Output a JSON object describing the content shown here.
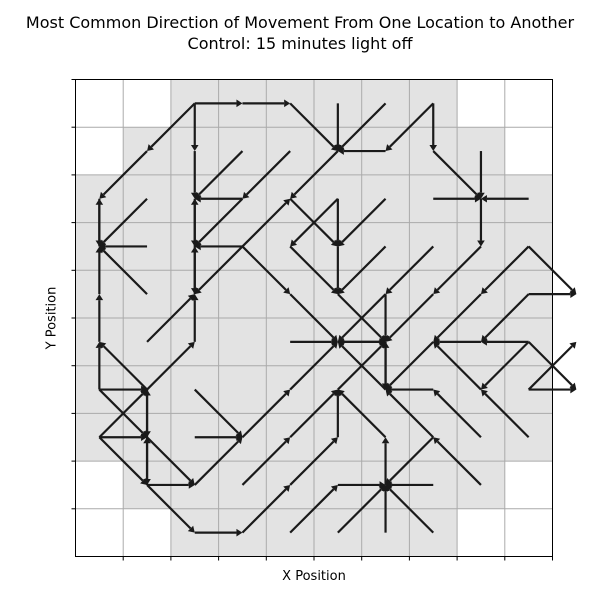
{
  "chart_data": {
    "type": "quiver",
    "title": "Most Common Direction of Movement From One Location to Another",
    "subtitle": "Control: 15 minutes light off",
    "xlabel": "X Position",
    "ylabel": "Y Position",
    "grid_cols": 10,
    "grid_rows": 10,
    "colors": {
      "visited": "#e3e3e3",
      "grid": "#aaaaaa",
      "arrow": "#1a1a1a",
      "axis": "#000000"
    },
    "visited_cells": [
      [
        2,
        0
      ],
      [
        3,
        0
      ],
      [
        4,
        0
      ],
      [
        5,
        0
      ],
      [
        6,
        0
      ],
      [
        7,
        0
      ],
      [
        1,
        1
      ],
      [
        2,
        1
      ],
      [
        3,
        1
      ],
      [
        4,
        1
      ],
      [
        5,
        1
      ],
      [
        6,
        1
      ],
      [
        7,
        1
      ],
      [
        8,
        1
      ],
      [
        0,
        2
      ],
      [
        1,
        2
      ],
      [
        2,
        2
      ],
      [
        3,
        2
      ],
      [
        4,
        2
      ],
      [
        5,
        2
      ],
      [
        6,
        2
      ],
      [
        7,
        2
      ],
      [
        8,
        2
      ],
      [
        9,
        2
      ],
      [
        0,
        3
      ],
      [
        1,
        3
      ],
      [
        2,
        3
      ],
      [
        3,
        3
      ],
      [
        4,
        3
      ],
      [
        5,
        3
      ],
      [
        6,
        3
      ],
      [
        7,
        3
      ],
      [
        8,
        3
      ],
      [
        9,
        3
      ],
      [
        0,
        4
      ],
      [
        1,
        4
      ],
      [
        2,
        4
      ],
      [
        3,
        4
      ],
      [
        4,
        4
      ],
      [
        5,
        4
      ],
      [
        6,
        4
      ],
      [
        7,
        4
      ],
      [
        8,
        4
      ],
      [
        9,
        4
      ],
      [
        0,
        5
      ],
      [
        1,
        5
      ],
      [
        2,
        5
      ],
      [
        3,
        5
      ],
      [
        4,
        5
      ],
      [
        5,
        5
      ],
      [
        6,
        5
      ],
      [
        7,
        5
      ],
      [
        8,
        5
      ],
      [
        9,
        5
      ],
      [
        0,
        6
      ],
      [
        1,
        6
      ],
      [
        2,
        6
      ],
      [
        3,
        6
      ],
      [
        4,
        6
      ],
      [
        5,
        6
      ],
      [
        6,
        6
      ],
      [
        7,
        6
      ],
      [
        8,
        6
      ],
      [
        9,
        6
      ],
      [
        0,
        7
      ],
      [
        1,
        7
      ],
      [
        2,
        7
      ],
      [
        3,
        7
      ],
      [
        4,
        7
      ],
      [
        5,
        7
      ],
      [
        6,
        7
      ],
      [
        7,
        7
      ],
      [
        8,
        7
      ],
      [
        9,
        7
      ],
      [
        1,
        8
      ],
      [
        2,
        8
      ],
      [
        3,
        8
      ],
      [
        4,
        8
      ],
      [
        5,
        8
      ],
      [
        6,
        8
      ],
      [
        7,
        8
      ],
      [
        8,
        8
      ],
      [
        2,
        9
      ],
      [
        3,
        9
      ],
      [
        4,
        9
      ],
      [
        5,
        9
      ],
      [
        6,
        9
      ],
      [
        7,
        9
      ]
    ],
    "moves": [
      {
        "from": [
          2,
          0
        ],
        "dir": "SW"
      },
      {
        "from": [
          2,
          0
        ],
        "dir": "S"
      },
      {
        "from": [
          2,
          0
        ],
        "dir": "E"
      },
      {
        "from": [
          3,
          0
        ],
        "dir": "E"
      },
      {
        "from": [
          4,
          0
        ],
        "dir": "SE"
      },
      {
        "from": [
          5,
          0
        ],
        "dir": "S"
      },
      {
        "from": [
          6,
          0
        ],
        "dir": "SW"
      },
      {
        "from": [
          7,
          0
        ],
        "dir": "SW"
      },
      {
        "from": [
          7,
          0
        ],
        "dir": "S"
      },
      {
        "from": [
          1,
          1
        ],
        "dir": "SW"
      },
      {
        "from": [
          2,
          1
        ],
        "dir": "S"
      },
      {
        "from": [
          3,
          1
        ],
        "dir": "SW"
      },
      {
        "from": [
          4,
          1
        ],
        "dir": "SW"
      },
      {
        "from": [
          5,
          1
        ],
        "dir": "SW"
      },
      {
        "from": [
          6,
          1
        ],
        "dir": "W"
      },
      {
        "from": [
          7,
          1
        ],
        "dir": "SE"
      },
      {
        "from": [
          8,
          1
        ],
        "dir": "S"
      },
      {
        "from": [
          0,
          2
        ],
        "dir": "S"
      },
      {
        "from": [
          1,
          2
        ],
        "dir": "SW"
      },
      {
        "from": [
          2,
          2
        ],
        "dir": "S"
      },
      {
        "from": [
          3,
          2
        ],
        "dir": "W"
      },
      {
        "from": [
          3,
          2
        ],
        "dir": "SW"
      },
      {
        "from": [
          4,
          2
        ],
        "dir": "SE"
      },
      {
        "from": [
          5,
          2
        ],
        "dir": "S"
      },
      {
        "from": [
          5,
          2
        ],
        "dir": "SW"
      },
      {
        "from": [
          6,
          2
        ],
        "dir": "SW"
      },
      {
        "from": [
          7,
          2
        ],
        "dir": "E"
      },
      {
        "from": [
          8,
          2
        ],
        "dir": "S"
      },
      {
        "from": [
          9,
          2
        ],
        "dir": "W"
      },
      {
        "from": [
          0,
          3
        ],
        "dir": "N"
      },
      {
        "from": [
          1,
          3
        ],
        "dir": "W"
      },
      {
        "from": [
          2,
          3
        ],
        "dir": "N"
      },
      {
        "from": [
          2,
          3
        ],
        "dir": "S"
      },
      {
        "from": [
          3,
          3
        ],
        "dir": "W"
      },
      {
        "from": [
          3,
          3
        ],
        "dir": "SE"
      },
      {
        "from": [
          3,
          3
        ],
        "dir": "SW"
      },
      {
        "from": [
          3,
          3
        ],
        "dir": "NE"
      },
      {
        "from": [
          4,
          3
        ],
        "dir": "SE"
      },
      {
        "from": [
          5,
          3
        ],
        "dir": "S"
      },
      {
        "from": [
          6,
          3
        ],
        "dir": "SW"
      },
      {
        "from": [
          7,
          3
        ],
        "dir": "SW"
      },
      {
        "from": [
          8,
          3
        ],
        "dir": "SW"
      },
      {
        "from": [
          9,
          3
        ],
        "dir": "SE"
      },
      {
        "from": [
          9,
          3
        ],
        "dir": "SW"
      },
      {
        "from": [
          0,
          4
        ],
        "dir": "N"
      },
      {
        "from": [
          1,
          4
        ],
        "dir": "NW"
      },
      {
        "from": [
          2,
          4
        ],
        "dir": "N"
      },
      {
        "from": [
          4,
          4
        ],
        "dir": "SE"
      },
      {
        "from": [
          5,
          4
        ],
        "dir": "SE"
      },
      {
        "from": [
          6,
          4
        ],
        "dir": "S"
      },
      {
        "from": [
          6,
          4
        ],
        "dir": "SW"
      },
      {
        "from": [
          7,
          4
        ],
        "dir": "SW"
      },
      {
        "from": [
          8,
          4
        ],
        "dir": "SW"
      },
      {
        "from": [
          9,
          4
        ],
        "dir": "E"
      },
      {
        "from": [
          9,
          4
        ],
        "dir": "SW"
      },
      {
        "from": [
          0,
          5
        ],
        "dir": "N"
      },
      {
        "from": [
          1,
          5
        ],
        "dir": "NE"
      },
      {
        "from": [
          2,
          5
        ],
        "dir": "N"
      },
      {
        "from": [
          4,
          5
        ],
        "dir": "E"
      },
      {
        "from": [
          5,
          5
        ],
        "dir": "E"
      },
      {
        "from": [
          6,
          5
        ],
        "dir": "W"
      },
      {
        "from": [
          6,
          5
        ],
        "dir": "S"
      },
      {
        "from": [
          7,
          5
        ],
        "dir": "SW"
      },
      {
        "from": [
          8,
          5
        ],
        "dir": "W"
      },
      {
        "from": [
          9,
          5
        ],
        "dir": "SE"
      },
      {
        "from": [
          9,
          5
        ],
        "dir": "W"
      },
      {
        "from": [
          9,
          5
        ],
        "dir": "SW"
      },
      {
        "from": [
          0,
          6
        ],
        "dir": "SE"
      },
      {
        "from": [
          0,
          6
        ],
        "dir": "E"
      },
      {
        "from": [
          0,
          6
        ],
        "dir": "N"
      },
      {
        "from": [
          1,
          6
        ],
        "dir": "NW"
      },
      {
        "from": [
          1,
          6
        ],
        "dir": "NE"
      },
      {
        "from": [
          1,
          6
        ],
        "dir": "S"
      },
      {
        "from": [
          2,
          6
        ],
        "dir": "SE"
      },
      {
        "from": [
          4,
          6
        ],
        "dir": "NE"
      },
      {
        "from": [
          5,
          6
        ],
        "dir": "NE"
      },
      {
        "from": [
          6,
          6
        ],
        "dir": "N"
      },
      {
        "from": [
          6,
          6
        ],
        "dir": "NW"
      },
      {
        "from": [
          7,
          6
        ],
        "dir": "W"
      },
      {
        "from": [
          8,
          6
        ],
        "dir": "NW"
      },
      {
        "from": [
          9,
          6
        ],
        "dir": "NE"
      },
      {
        "from": [
          9,
          6
        ],
        "dir": "E"
      },
      {
        "from": [
          0,
          7
        ],
        "dir": "NE"
      },
      {
        "from": [
          0,
          7
        ],
        "dir": "E"
      },
      {
        "from": [
          0,
          7
        ],
        "dir": "SE"
      },
      {
        "from": [
          1,
          7
        ],
        "dir": "N"
      },
      {
        "from": [
          1,
          7
        ],
        "dir": "S"
      },
      {
        "from": [
          1,
          7
        ],
        "dir": "SE"
      },
      {
        "from": [
          2,
          7
        ],
        "dir": "E"
      },
      {
        "from": [
          3,
          7
        ],
        "dir": "NE"
      },
      {
        "from": [
          4,
          7
        ],
        "dir": "NE"
      },
      {
        "from": [
          5,
          7
        ],
        "dir": "N"
      },
      {
        "from": [
          6,
          7
        ],
        "dir": "NW"
      },
      {
        "from": [
          7,
          7
        ],
        "dir": "NW"
      },
      {
        "from": [
          7,
          7
        ],
        "dir": "SW"
      },
      {
        "from": [
          8,
          7
        ],
        "dir": "NW"
      },
      {
        "from": [
          9,
          7
        ],
        "dir": "NW"
      },
      {
        "from": [
          1,
          8
        ],
        "dir": "N"
      },
      {
        "from": [
          1,
          8
        ],
        "dir": "E"
      },
      {
        "from": [
          1,
          8
        ],
        "dir": "SE"
      },
      {
        "from": [
          2,
          8
        ],
        "dir": "NE"
      },
      {
        "from": [
          3,
          8
        ],
        "dir": "NE"
      },
      {
        "from": [
          4,
          8
        ],
        "dir": "NE"
      },
      {
        "from": [
          5,
          8
        ],
        "dir": "E"
      },
      {
        "from": [
          6,
          8
        ],
        "dir": "N"
      },
      {
        "from": [
          7,
          8
        ],
        "dir": "W"
      },
      {
        "from": [
          8,
          8
        ],
        "dir": "NW"
      },
      {
        "from": [
          2,
          9
        ],
        "dir": "E"
      },
      {
        "from": [
          3,
          9
        ],
        "dir": "NE"
      },
      {
        "from": [
          4,
          9
        ],
        "dir": "NE"
      },
      {
        "from": [
          5,
          9
        ],
        "dir": "NE"
      },
      {
        "from": [
          6,
          9
        ],
        "dir": "N"
      },
      {
        "from": [
          7,
          9
        ],
        "dir": "NW"
      }
    ]
  }
}
